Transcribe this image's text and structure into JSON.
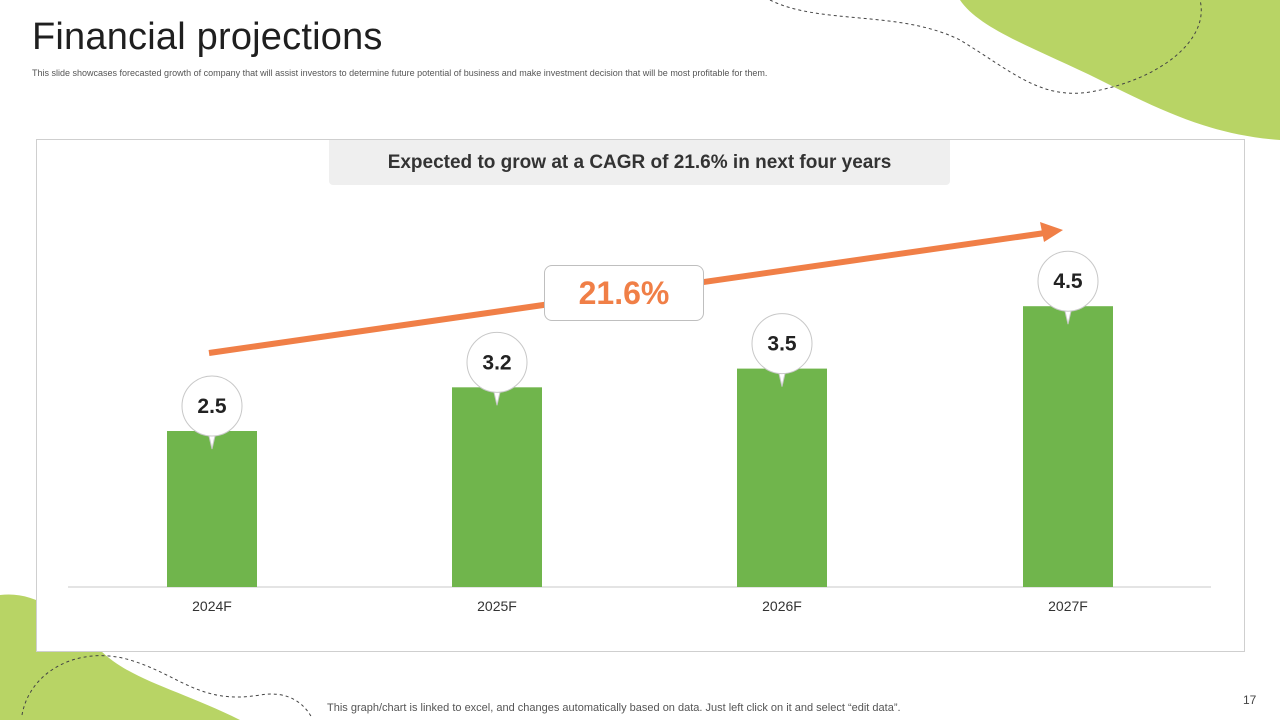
{
  "slide": {
    "title": "Financial projections",
    "subtitle": "This slide showcases forecasted growth of company that will assist investors to determine future potential of business and make investment decision that will be most profitable for them.",
    "headline": "Expected to grow at a CAGR of 21.6% in next four years",
    "cagr_label": "21.6%",
    "footnote": "This graph/chart is linked to excel, and changes automatically based on data. Just left click on it and select “edit data”.",
    "page_number": "17"
  },
  "colors": {
    "bar": "#70b54c",
    "arrow": "#f07f47",
    "accent_blob": "#b8d465"
  },
  "chart_data": {
    "type": "bar",
    "categories": [
      "2024F",
      "2025F",
      "2026F",
      "2027F"
    ],
    "values": [
      2.5,
      3.2,
      3.5,
      4.5
    ],
    "data_labels": [
      "2.5",
      "3.2",
      "3.5",
      "4.5"
    ],
    "ylim": [
      0,
      5
    ],
    "grid": false,
    "legend": "none"
  }
}
